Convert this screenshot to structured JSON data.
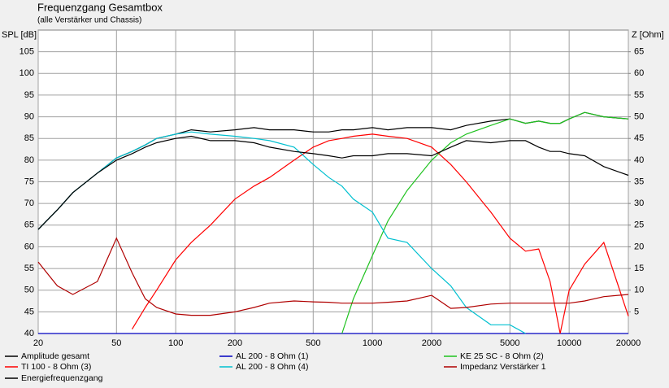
{
  "chart_data": {
    "type": "line",
    "title": "Frequenzgang Gesamtbox",
    "subtitle": "(alle Verstärker und Chassis)",
    "y_label": "SPL [dB]",
    "y2_label": "Z [Ohm]",
    "log_x": true,
    "grid": true,
    "x": [
      20,
      25,
      30,
      40,
      50,
      60,
      70,
      80,
      100,
      120,
      150,
      200,
      250,
      300,
      400,
      500,
      600,
      700,
      800,
      1000,
      1200,
      1500,
      2000,
      2500,
      3000,
      4000,
      5000,
      6000,
      7000,
      8000,
      9000,
      10000,
      12000,
      15000,
      20000
    ],
    "xlim": [
      20,
      20000
    ],
    "xticks": [
      20,
      50,
      100,
      200,
      500,
      1000,
      2000,
      5000,
      10000,
      20000
    ],
    "ylim": [
      40,
      110
    ],
    "yticks": [
      40,
      45,
      50,
      55,
      60,
      65,
      70,
      75,
      80,
      85,
      90,
      95,
      100,
      105
    ],
    "y2lim": [
      0,
      70
    ],
    "y2ticks": [
      5,
      10,
      15,
      20,
      25,
      30,
      35,
      40,
      45,
      50,
      55,
      60,
      65
    ],
    "series": [
      {
        "name": "Amplitude gesamt",
        "color": "#000000",
        "values": [
          64,
          68.5,
          72.5,
          77,
          80.5,
          82,
          83.5,
          85,
          86,
          87,
          86.5,
          87,
          87.5,
          87,
          87,
          86.5,
          86.5,
          87,
          87,
          87.5,
          87,
          87.5,
          87.5,
          87,
          88,
          89,
          89.5,
          88.5,
          89,
          88.5,
          88.5,
          89.5,
          91,
          90,
          89.5
        ]
      },
      {
        "name": "AL 200 - 8 Ohm (1)",
        "color": "#0000c0",
        "values": [
          40,
          40,
          40,
          40,
          40,
          40,
          40,
          40,
          40,
          40,
          40,
          40,
          40,
          40,
          40,
          40,
          40,
          40,
          40,
          40,
          40,
          40,
          40,
          40,
          40,
          40,
          40,
          40,
          40,
          40,
          40,
          40,
          40,
          40,
          40
        ]
      },
      {
        "name": "KE 25 SC - 8 Ohm    (2)",
        "color": "#1fc21f",
        "values": [
          null,
          null,
          null,
          null,
          null,
          null,
          null,
          null,
          null,
          null,
          null,
          null,
          null,
          null,
          null,
          null,
          null,
          40,
          48,
          58,
          66,
          73,
          80,
          84,
          86,
          88,
          89.5,
          88.5,
          89,
          88.5,
          88.5,
          89.5,
          91,
          90,
          89.5
        ]
      },
      {
        "name": "TI 100 - 8 Ohm (3)",
        "color": "#ff0000",
        "values": [
          null,
          null,
          null,
          null,
          null,
          41,
          46,
          50,
          57,
          61,
          65,
          71,
          74,
          76,
          80,
          83,
          84.5,
          85,
          85.5,
          86,
          85.5,
          85,
          83,
          79,
          75,
          68,
          62,
          59,
          59.5,
          52,
          40,
          50,
          56,
          61,
          44
        ]
      },
      {
        "name": "AL 200 - 8 Ohm (4)",
        "color": "#00c0d0",
        "values": [
          64,
          68.5,
          72.5,
          77,
          80.5,
          82,
          83.5,
          85,
          86,
          86.5,
          86,
          85.5,
          85,
          84.5,
          83,
          79,
          76,
          74,
          71,
          68,
          62,
          61,
          55,
          51,
          46,
          42,
          42,
          40,
          null,
          null,
          null,
          null,
          null,
          null,
          null
        ]
      },
      {
        "name": "Impedanz Verstärker 1",
        "color": "#b00000",
        "axis": "y2",
        "values": [
          16.5,
          11,
          9,
          12,
          22,
          14,
          8,
          6,
          4.5,
          4.2,
          4.2,
          5,
          6,
          7,
          7.5,
          7.3,
          7.2,
          7,
          7,
          7,
          7.2,
          7.5,
          8.8,
          5.8,
          6,
          6.8,
          7,
          7,
          7,
          7,
          7,
          7,
          7.5,
          8.5,
          9
        ]
      },
      {
        "name": "Energiefrequenzgang",
        "color": "#000000",
        "values": [
          64,
          68.5,
          72.5,
          77,
          80,
          81.5,
          83,
          84,
          85,
          85.5,
          84.5,
          84.5,
          84,
          83,
          82,
          81.5,
          81,
          80.5,
          81,
          81,
          81.5,
          81.5,
          81,
          83,
          84.5,
          84,
          84.5,
          84.5,
          83,
          82,
          82,
          81.5,
          81,
          78.5,
          76.5
        ]
      }
    ]
  }
}
